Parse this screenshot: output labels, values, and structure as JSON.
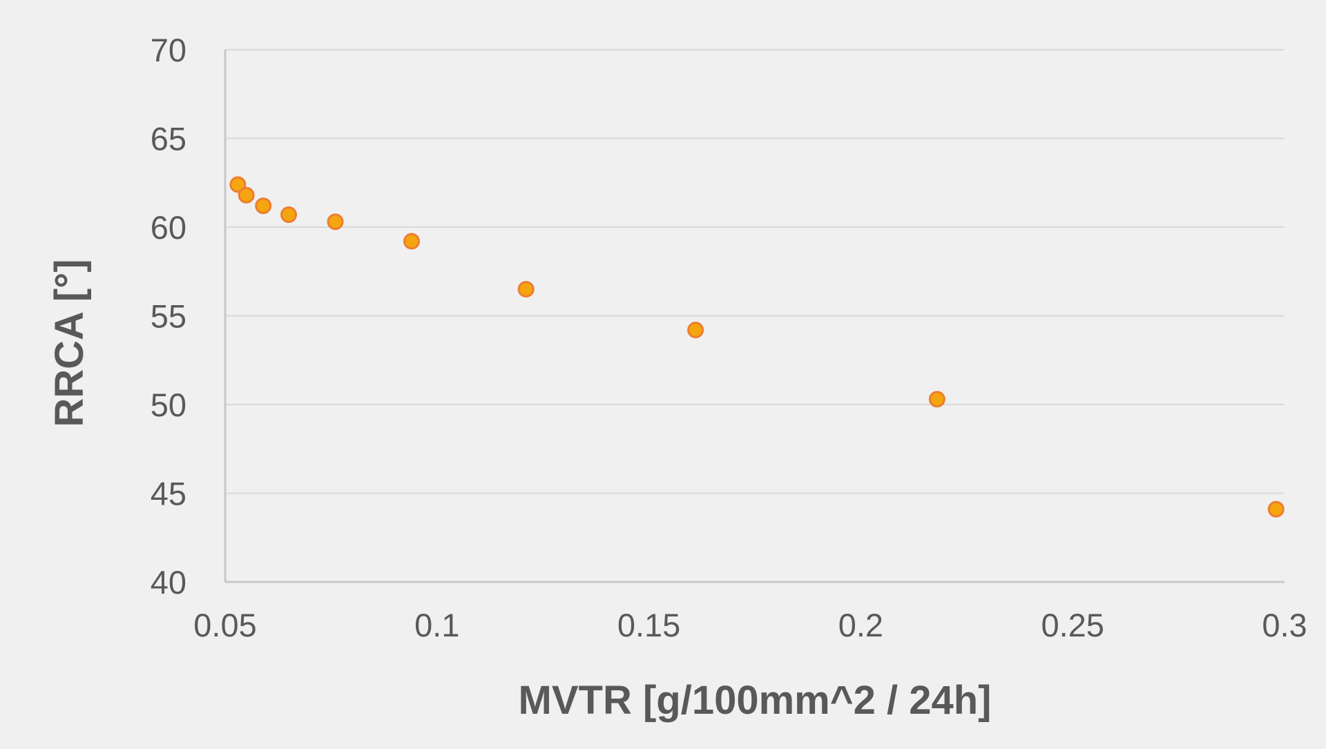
{
  "chart_data": {
    "type": "scatter",
    "title": "",
    "xlabel": "MVTR [g/100mm^2 / 24h]",
    "ylabel": "RRCA [°]",
    "xlim": [
      0.05,
      0.3
    ],
    "ylim": [
      40,
      70
    ],
    "x_ticks": [
      0.05,
      0.1,
      0.15,
      0.2,
      0.25,
      0.3
    ],
    "x_tick_labels": [
      "0.05",
      "0.1",
      "0.15",
      "0.2",
      "0.25",
      "0.3"
    ],
    "y_ticks": [
      40,
      45,
      50,
      55,
      60,
      65,
      70
    ],
    "y_tick_labels": [
      "40",
      "45",
      "50",
      "55",
      "60",
      "65",
      "70"
    ],
    "grid": {
      "horizontal": true,
      "vertical": false
    },
    "legend": "none",
    "series": [
      {
        "color_fill": "#f5a50f",
        "color_stroke": "#ed7d31",
        "x": [
          0.053,
          0.055,
          0.059,
          0.065,
          0.076,
          0.094,
          0.121,
          0.161,
          0.218,
          0.298
        ],
        "y": [
          62.4,
          61.8,
          61.2,
          60.7,
          60.3,
          59.2,
          56.5,
          54.2,
          50.3,
          44.1
        ]
      }
    ]
  }
}
